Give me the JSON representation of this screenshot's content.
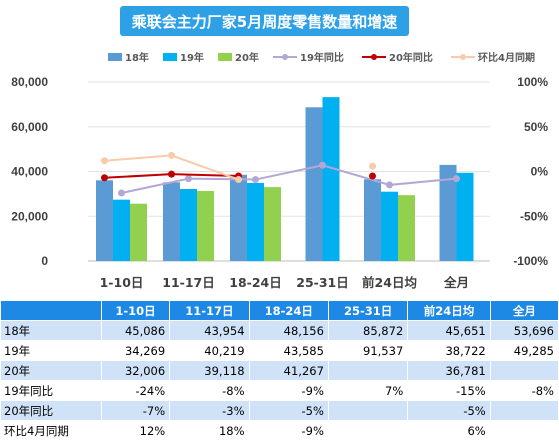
{
  "title": "乘联会主力厂家5月周度零售数量和增速",
  "colors": {
    "s18": "#5B9BD5",
    "s19": "#00B0F0",
    "s20": "#92D050",
    "yoy19": "#B4A7D6",
    "yoy20": "#C00000",
    "mom": "#F8CBAD",
    "header": "#1E88E5",
    "band": "#CFE2F7"
  },
  "chart_data": {
    "type": "bar",
    "categories": [
      "1-10日",
      "11-17日",
      "18-24日",
      "25-31日",
      "前24日均",
      "全月"
    ],
    "series": [
      {
        "name": "18年",
        "values": [
          45086,
          43954,
          48156,
          85872,
          45651,
          53696
        ]
      },
      {
        "name": "19年",
        "values": [
          34269,
          40219,
          43585,
          91537,
          38722,
          49285
        ]
      },
      {
        "name": "20年",
        "values": [
          32006,
          39118,
          41267,
          null,
          36781,
          null
        ]
      }
    ],
    "line_series": [
      {
        "name": "19年同比",
        "values": [
          -24,
          -8,
          -9,
          7,
          -15,
          -8
        ]
      },
      {
        "name": "20年同比",
        "values": [
          -7,
          -3,
          -5,
          null,
          -5,
          null
        ]
      },
      {
        "name": "环比4月同期",
        "values": [
          12,
          18,
          -9,
          null,
          6,
          null
        ]
      }
    ],
    "left_ticks": [
      "0",
      "20,000",
      "40,000",
      "60,000",
      "80,000"
    ],
    "right_ticks": [
      "-100%",
      "-50%",
      "0%",
      "50%",
      "100%"
    ],
    "ylim": [
      0,
      100000
    ],
    "y2lim": [
      -100,
      100
    ]
  },
  "table": {
    "headers": [
      "",
      "1-10日",
      "11-17日",
      "18-24日",
      "25-31日",
      "前24日均",
      "全月"
    ],
    "rows": [
      {
        "label": "18年",
        "cells": [
          "45,086",
          "43,954",
          "48,156",
          "85,872",
          "45,651",
          "53,696"
        ]
      },
      {
        "label": "19年",
        "cells": [
          "34,269",
          "40,219",
          "43,585",
          "91,537",
          "38,722",
          "49,285"
        ]
      },
      {
        "label": "20年",
        "cells": [
          "32,006",
          "39,118",
          "41,267",
          "",
          "36,781",
          ""
        ]
      },
      {
        "label": "19年同比",
        "cells": [
          "-24%",
          "-8%",
          "-9%",
          "7%",
          "-15%",
          "-8%"
        ]
      },
      {
        "label": "20年同比",
        "cells": [
          "-7%",
          "-3%",
          "-5%",
          "",
          "-5%",
          ""
        ]
      },
      {
        "label": "环比4月同期",
        "cells": [
          "12%",
          "18%",
          "-9%",
          "",
          "6%",
          ""
        ]
      }
    ]
  }
}
